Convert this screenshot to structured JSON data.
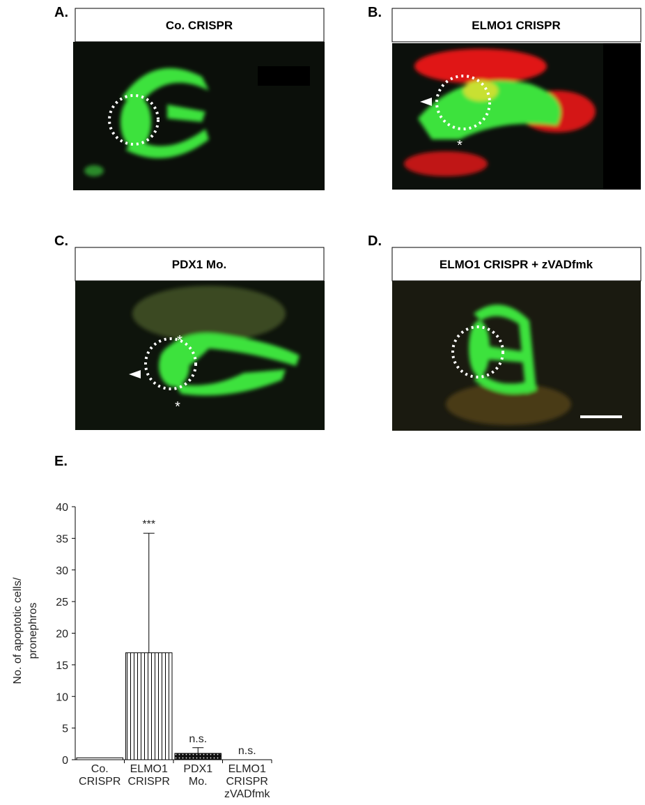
{
  "panels": [
    {
      "label": "A.",
      "title": "Co. CRISPR"
    },
    {
      "label": "B.",
      "title": "ELMO1 CRISPR"
    },
    {
      "label": "C.",
      "title": "PDX1 Mo."
    },
    {
      "label": "D.",
      "title": "ELMO1 CRISPR + zVADfmk"
    }
  ],
  "chart_label": "E.",
  "chart_data": {
    "type": "bar",
    "y_label": [
      "No. of apoptotic cells/",
      "pronephros"
    ],
    "categories": [
      [
        "Co.",
        "CRISPR"
      ],
      [
        "ELMO1",
        "CRISPR"
      ],
      [
        "PDX1",
        "Mo."
      ],
      [
        "ELMO1",
        "CRISPR",
        "zVADfmk"
      ]
    ],
    "values": [
      0.3,
      16.9,
      1.0,
      0
    ],
    "errors": [
      null,
      18.9,
      0.9,
      null
    ],
    "annotations": [
      null,
      "***",
      "n.s.",
      "n.s."
    ],
    "fills": [
      "plain",
      "stripes",
      "dots",
      "plain"
    ],
    "ylim": [
      0,
      40
    ],
    "yticks": [
      0,
      5,
      10,
      15,
      20,
      25,
      30,
      35,
      40
    ]
  }
}
